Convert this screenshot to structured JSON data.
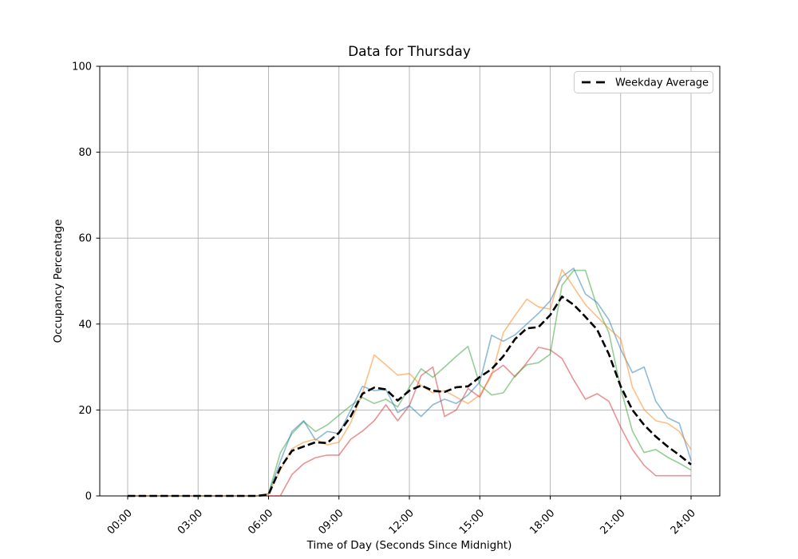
{
  "figure": {
    "background": "#ffffff",
    "plot_background": "#ffffff",
    "grid_color": "#b0b0b0",
    "spine_color": "#000000"
  },
  "chart_data": {
    "type": "line",
    "title": "Data for Thursday",
    "xlabel": "Time of Day (Seconds Since Midnight)",
    "ylabel": "Occupancy Percentage",
    "grid": true,
    "ylim": [
      0,
      100
    ],
    "yticks": [
      0,
      20,
      40,
      60,
      80,
      100
    ],
    "xticks_hours": [
      0,
      3,
      6,
      9,
      12,
      15,
      18,
      21,
      24
    ],
    "xtick_labels": [
      "00:00",
      "03:00",
      "06:00",
      "09:00",
      "12:00",
      "15:00",
      "18:00",
      "21:00",
      "24:00"
    ],
    "x_hours": [
      0,
      0.5,
      1,
      1.5,
      2,
      2.5,
      3,
      3.5,
      4,
      4.5,
      5,
      5.5,
      6,
      6.5,
      7,
      7.5,
      8,
      8.5,
      9,
      9.5,
      10,
      10.5,
      11,
      11.5,
      12,
      12.5,
      13,
      13.5,
      14,
      14.5,
      15,
      15.5,
      16,
      16.5,
      17,
      17.5,
      18,
      18.5,
      19,
      19.5,
      20,
      20.5,
      21,
      21.5,
      22,
      22.5,
      23,
      23.5,
      24
    ],
    "legend": {
      "position": "upper-right",
      "entries": [
        "Weekday Average"
      ]
    },
    "series": [
      {
        "name": "unlabeled-day-1",
        "color": "#d62728",
        "alpha": 0.5,
        "style": "solid",
        "values": [
          0,
          0,
          0,
          0,
          0,
          0,
          0,
          0,
          0,
          0,
          0,
          0,
          0,
          0,
          5,
          7.5,
          8.9,
          9.5,
          9.5,
          13.2,
          15.1,
          17.5,
          21.2,
          17.5,
          21,
          28,
          30,
          18.5,
          20,
          25,
          23,
          28.5,
          30.4,
          27.7,
          31,
          34.6,
          34,
          32,
          27,
          22.5,
          23.8,
          22,
          16,
          10.8,
          7.1,
          4.7,
          4.7,
          4.7,
          4.7
        ]
      },
      {
        "name": "unlabeled-day-2",
        "color": "#2ca02c",
        "alpha": 0.5,
        "style": "solid",
        "values": [
          0,
          0,
          0,
          0,
          0,
          0,
          0,
          0,
          0,
          0,
          0,
          0,
          0.5,
          10,
          14.5,
          17.3,
          15,
          16.5,
          18.8,
          21,
          22.9,
          21.5,
          22.5,
          20.7,
          25.3,
          29.6,
          27.6,
          30,
          32.5,
          34.8,
          25.9,
          23.5,
          24,
          28,
          30.5,
          31,
          33,
          49,
          52.5,
          52.5,
          44,
          38,
          25,
          15.1,
          10.1,
          10.8,
          9,
          7.6,
          6
        ]
      },
      {
        "name": "unlabeled-day-3",
        "color": "#1f77b4",
        "alpha": 0.5,
        "style": "solid",
        "values": [
          0,
          0,
          0,
          0,
          0,
          0,
          0,
          0,
          0,
          0,
          0,
          0,
          0.5,
          8,
          15,
          17.5,
          13,
          15,
          14.5,
          20,
          25.5,
          24.5,
          24.8,
          19.4,
          21,
          18.5,
          21.2,
          22.5,
          21.5,
          23.5,
          26.5,
          37.4,
          36,
          37.5,
          40,
          42.5,
          45.4,
          51,
          53,
          47,
          45,
          41,
          34.1,
          28.7,
          30,
          22,
          18.2,
          16.9,
          8.2
        ]
      },
      {
        "name": "unlabeled-day-4",
        "color": "#ff7f0e",
        "alpha": 0.5,
        "style": "solid",
        "values": [
          0,
          0,
          0,
          0,
          0,
          0,
          0,
          0,
          0,
          0,
          0,
          0,
          0.5,
          6,
          11,
          12.5,
          13.2,
          11.9,
          12.5,
          17,
          24,
          32.8,
          30.5,
          28.1,
          28.5,
          25.7,
          24,
          24.5,
          23,
          21.5,
          23.5,
          28,
          38,
          42,
          45.8,
          44,
          43.5,
          52.7,
          48.6,
          44.5,
          41.7,
          39,
          36.5,
          25.3,
          20.1,
          17.5,
          16.9,
          15,
          10.8
        ]
      },
      {
        "name": "weekday-average",
        "legend_label": "Weekday Average",
        "color": "#000000",
        "alpha": 1,
        "style": "dashed",
        "values": [
          0,
          0,
          0,
          0,
          0,
          0,
          0,
          0,
          0,
          0,
          0,
          0,
          0.3,
          6.5,
          10.5,
          11.5,
          12.5,
          12.3,
          14.7,
          18.5,
          23.8,
          25.2,
          24.8,
          22.2,
          24.5,
          25.7,
          24.5,
          24.2,
          25.3,
          25.5,
          27.7,
          29.5,
          32.5,
          36.5,
          39,
          39.3,
          42.1,
          46.4,
          44.5,
          41.7,
          38.7,
          33,
          25.5,
          20,
          16.5,
          13.8,
          11.5,
          9.5,
          7.3
        ]
      }
    ]
  }
}
